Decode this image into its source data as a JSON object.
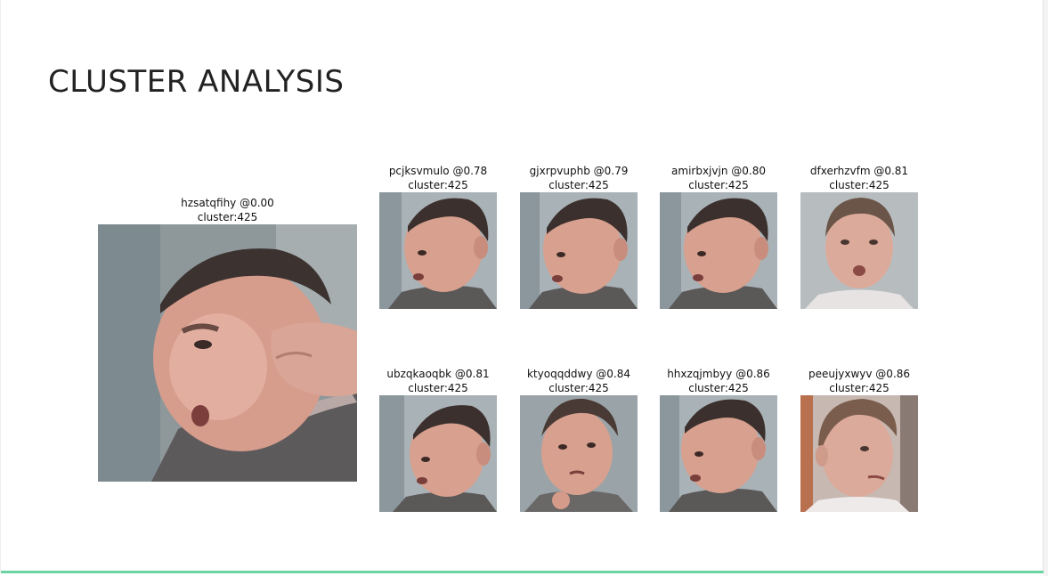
{
  "slide": {
    "title": "CLUSTER ANALYSIS",
    "accent_color": "#6cd4a2"
  },
  "query": {
    "id": "hzsatqfihy",
    "score": "@0.00",
    "caption_line1": "hzsatqfihy @0.00",
    "caption_line2": "cluster:425",
    "pose": "closeup-hand"
  },
  "matches": [
    {
      "caption_line1": "pcjksvmulo @0.78",
      "caption_line2": "cluster:425",
      "pose": "right-profile"
    },
    {
      "caption_line1": "gjxrpvuphb @0.79",
      "caption_line2": "cluster:425",
      "pose": "right-profile"
    },
    {
      "caption_line1": "amirbxjvjn @0.80",
      "caption_line2": "cluster:425",
      "pose": "right-profile"
    },
    {
      "caption_line1": "dfxerhzvfm @0.81",
      "caption_line2": "cluster:425",
      "pose": "frontal"
    },
    {
      "caption_line1": "ubzqkaoqbk @0.81",
      "caption_line2": "cluster:425",
      "pose": "right-profile"
    },
    {
      "caption_line1": "ktyoqqddwy @0.84",
      "caption_line2": "cluster:425",
      "pose": "frontal-tilt"
    },
    {
      "caption_line1": "hhxzqjmbyy @0.86",
      "caption_line2": "cluster:425",
      "pose": "right-profile"
    },
    {
      "caption_line1": "peeujyxwyv @0.86",
      "caption_line2": "cluster:425",
      "pose": "left-profile"
    }
  ]
}
